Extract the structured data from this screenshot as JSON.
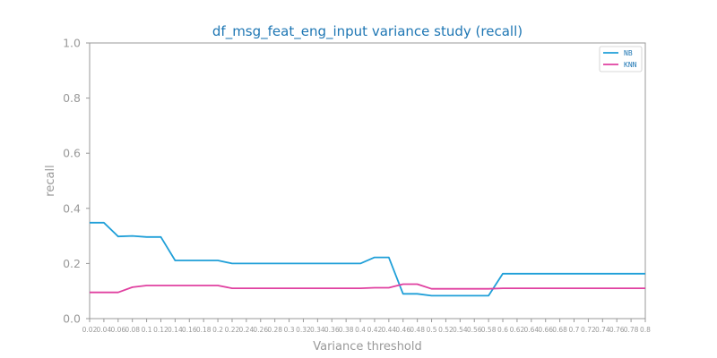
{
  "chart_data": {
    "type": "line",
    "title": "df_msg_feat_eng_input variance study (recall)",
    "xlabel": "Variance threshold",
    "ylabel": "recall",
    "ylim": [
      0,
      1
    ],
    "yticks": [
      "0.0",
      "0.2",
      "0.4",
      "0.6",
      "0.8",
      "1.0"
    ],
    "x": [
      0.02,
      0.04,
      0.06,
      0.08,
      0.1,
      0.12,
      0.14,
      0.16,
      0.18,
      0.2,
      0.22,
      0.24,
      0.26,
      0.28,
      0.3,
      0.32,
      0.34,
      0.36,
      0.38,
      0.4,
      0.42,
      0.44,
      0.46,
      0.48,
      0.5,
      0.52,
      0.54,
      0.56,
      0.58,
      0.6,
      0.62,
      0.64,
      0.66,
      0.68,
      0.7,
      0.72,
      0.74,
      0.76,
      0.78,
      0.8
    ],
    "xtick_labels": [
      "0.02",
      "0.04",
      "0.06",
      "0.08",
      "0.1",
      "0.12",
      "0.14",
      "0.16",
      "0.18",
      "0.2",
      "0.22",
      "0.24",
      "0.26",
      "0.28",
      "0.3",
      "0.32",
      "0.34",
      "0.36",
      "0.38",
      "0.4",
      "0.42",
      "0.44",
      "0.46",
      "0.48",
      "0.5",
      "0.52",
      "0.54",
      "0.56",
      "0.58",
      "0.6",
      "0.62",
      "0.64",
      "0.66",
      "0.68",
      "0.7",
      "0.72",
      "0.74",
      "0.76",
      "0.78",
      "0.8"
    ],
    "series": [
      {
        "name": "NB",
        "color": "#1f9fd8",
        "values": [
          0.348,
          0.348,
          0.298,
          0.3,
          0.296,
          0.296,
          0.211,
          0.211,
          0.211,
          0.211,
          0.2,
          0.2,
          0.2,
          0.2,
          0.2,
          0.2,
          0.2,
          0.2,
          0.2,
          0.2,
          0.222,
          0.222,
          0.09,
          0.09,
          0.083,
          0.083,
          0.083,
          0.083,
          0.083,
          0.163,
          0.163,
          0.163,
          0.163,
          0.163,
          0.163,
          0.163,
          0.163,
          0.163,
          0.163,
          0.163
        ]
      },
      {
        "name": "KNN",
        "color": "#e040a0",
        "values": [
          0.095,
          0.095,
          0.095,
          0.114,
          0.12,
          0.12,
          0.12,
          0.12,
          0.12,
          0.12,
          0.11,
          0.11,
          0.11,
          0.11,
          0.11,
          0.11,
          0.11,
          0.11,
          0.11,
          0.11,
          0.112,
          0.112,
          0.125,
          0.125,
          0.108,
          0.108,
          0.108,
          0.108,
          0.108,
          0.11,
          0.11,
          0.11,
          0.11,
          0.11,
          0.11,
          0.11,
          0.11,
          0.11,
          0.11,
          0.11
        ]
      }
    ],
    "legend": "top-right",
    "grid": false
  }
}
